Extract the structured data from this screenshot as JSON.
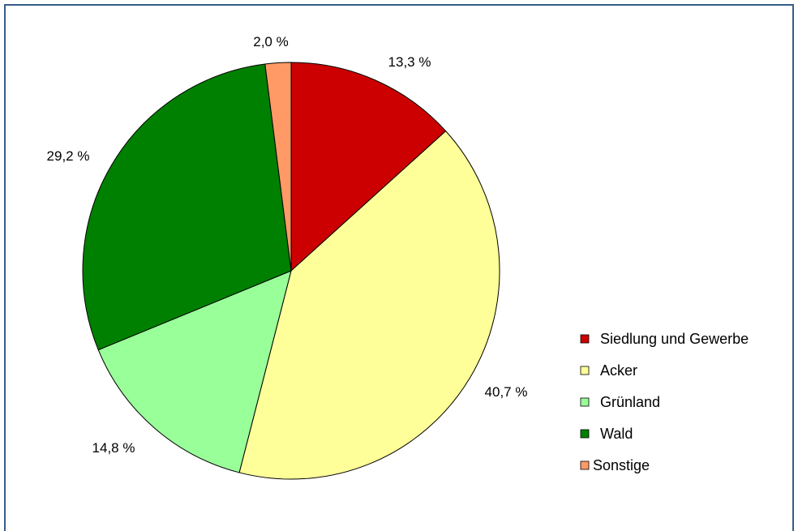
{
  "chart_data": {
    "type": "pie",
    "title": "",
    "slices": [
      {
        "label": "Siedlung und Gewerbe",
        "value": 13.3,
        "value_label": "13,3 %",
        "color": "#cc0000"
      },
      {
        "label": "Acker",
        "value": 40.7,
        "value_label": "40,7 %",
        "color": "#ffff99"
      },
      {
        "label": "Grünland",
        "value": 14.8,
        "value_label": "14,8 %",
        "color": "#99ff99"
      },
      {
        "label": "Wald",
        "value": 29.2,
        "value_label": "29,2 %",
        "color": "#008000"
      },
      {
        "label": "Sonstige",
        "value": 2.0,
        "value_label": "2,0 %",
        "color": "#ff9966"
      }
    ],
    "start_angle": "12 o'clock",
    "direction": "clockwise",
    "legend_position": "right"
  }
}
